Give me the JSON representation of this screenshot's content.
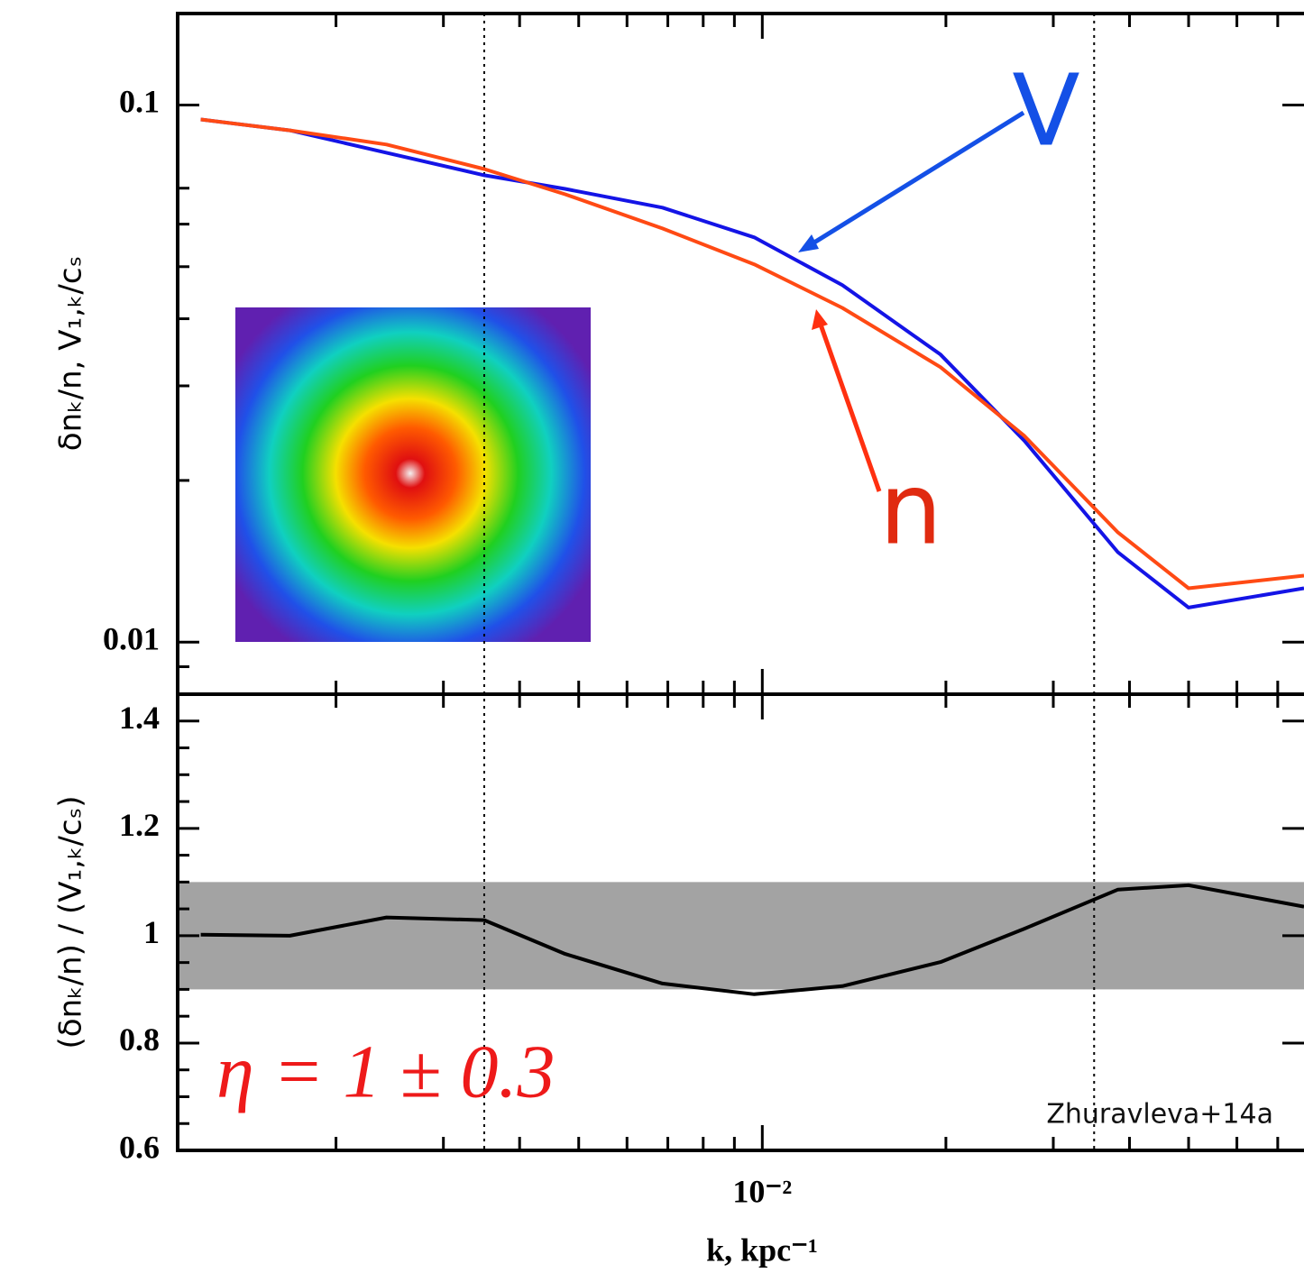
{
  "chart_data": [
    {
      "type": "line",
      "xscale": "log",
      "yscale": "log",
      "x": [
        0.0012,
        0.00168,
        0.00242,
        0.0035,
        0.00475,
        0.00686,
        0.0097,
        0.01353,
        0.0196,
        0.0269,
        0.0383,
        0.05,
        0.0773
      ],
      "series": [
        {
          "name": "V",
          "color": "#1414e6",
          "values": [
            0.094,
            0.0897,
            0.0815,
            0.074,
            0.0698,
            0.0644,
            0.0567,
            0.0462,
            0.0343,
            0.0237,
            0.0147,
            0.0116,
            0.0126
          ]
        },
        {
          "name": "n",
          "color": "#ff4a14",
          "values": [
            0.094,
            0.0897,
            0.0844,
            0.076,
            0.0682,
            0.0589,
            0.0505,
            0.0419,
            0.0325,
            0.0242,
            0.016,
            0.0126,
            0.0133
          ]
        }
      ],
      "xlim": [
        0.0011,
        0.0773
      ],
      "ylim": [
        0.008,
        0.148
      ],
      "yticks": [
        0.1,
        0.01
      ],
      "yminorticks": [
        0.009,
        0.02,
        0.03,
        0.04,
        0.05,
        0.06,
        0.07
      ],
      "ylabel": "δnₖ/n, V₁,ₖ/cₛ"
    },
    {
      "type": "line",
      "xscale": "log",
      "yscale": "linear",
      "x": [
        0.0012,
        0.00168,
        0.00242,
        0.0035,
        0.00475,
        0.00686,
        0.0097,
        0.01353,
        0.0196,
        0.0269,
        0.0383,
        0.05,
        0.0773
      ],
      "series": [
        {
          "color": "#000000",
          "values": [
            1.002,
            1.0,
            1.034,
            1.029,
            0.966,
            0.911,
            0.891,
            0.906,
            0.951,
            1.013,
            1.086,
            1.094,
            1.054
          ]
        }
      ],
      "band": [
        0.9,
        1.1
      ],
      "band_color": "#a3a3a3",
      "xlim": [
        0.0011,
        0.0773
      ],
      "ylim": [
        0.6,
        1.45
      ],
      "yticks": [
        1.4,
        1.2,
        1,
        0.8,
        0.6
      ],
      "yminorticks": [
        0.65,
        0.7,
        0.75,
        0.85,
        0.9,
        0.95,
        1.05,
        1.1,
        1.15,
        1.25,
        1.3,
        1.35
      ],
      "xticks": [
        {
          "value": 0.01,
          "label": "10⁻²"
        }
      ],
      "xminorticks": [
        0.002,
        0.003,
        0.004,
        0.005,
        0.006,
        0.007,
        0.008,
        0.009,
        0.02,
        0.03,
        0.04,
        0.05,
        0.06,
        0.07
      ],
      "vlines": [
        0.0035,
        0.035
      ],
      "ylabel": "(δnₖ/n) / (V₁,ₖ/cₛ)",
      "xlabel": "k,  kpc⁻¹",
      "annotations": [
        "η = 1 ± 0.3",
        "Zhuravleva+14a"
      ]
    }
  ]
}
